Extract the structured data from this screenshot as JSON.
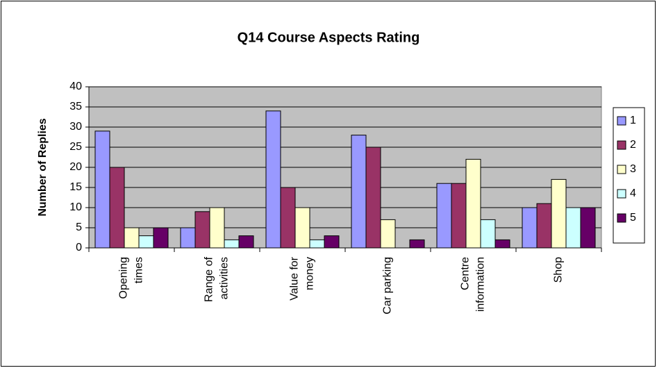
{
  "chart_data": {
    "type": "bar",
    "title": "Q14 Course Aspects Rating",
    "y_label": "Number of Replies",
    "categories": [
      [
        "Opening",
        "times"
      ],
      [
        "Range of",
        "activities"
      ],
      [
        "Value for",
        "money"
      ],
      [
        "Car parking"
      ],
      [
        "Centre",
        "information"
      ],
      [
        "Shop"
      ]
    ],
    "series": [
      {
        "name": "1",
        "color": "#9999ff",
        "values": [
          29,
          5,
          34,
          28,
          16,
          10
        ]
      },
      {
        "name": "2",
        "color": "#993366",
        "values": [
          20,
          9,
          15,
          25,
          16,
          11
        ]
      },
      {
        "name": "3",
        "color": "#ffffcc",
        "values": [
          5,
          10,
          10,
          7,
          22,
          17
        ]
      },
      {
        "name": "4",
        "color": "#ccffff",
        "values": [
          3,
          2,
          2,
          0,
          7,
          10
        ]
      },
      {
        "name": "5",
        "color": "#660066",
        "values": [
          5,
          3,
          3,
          2,
          2,
          10
        ]
      }
    ],
    "ylim": [
      0,
      40
    ],
    "yticks": [
      0,
      5,
      10,
      15,
      20,
      25,
      30,
      35,
      40
    ],
    "grid": true,
    "legend": "right"
  }
}
